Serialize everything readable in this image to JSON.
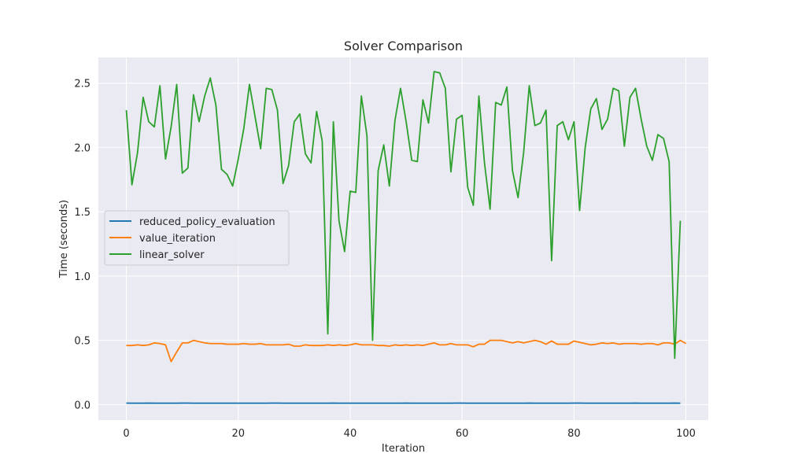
{
  "chart_data": {
    "type": "line",
    "title": "Solver Comparison",
    "xlabel": "Iteration",
    "ylabel": "Time (seconds)",
    "xlim": [
      -5,
      104
    ],
    "ylim": [
      -0.12,
      2.7
    ],
    "xticks": [
      0,
      20,
      40,
      60,
      80,
      100
    ],
    "xtick_labels": [
      "0",
      "20",
      "40",
      "60",
      "80",
      "100"
    ],
    "yticks": [
      0.0,
      0.5,
      1.0,
      1.5,
      2.0,
      2.5
    ],
    "ytick_labels": [
      "0.0",
      "0.5",
      "1.0",
      "1.5",
      "2.0",
      "2.5"
    ],
    "grid": true,
    "legend_position": "center-left",
    "series": [
      {
        "name": "reduced_policy_evaluation",
        "color": "#1f77b4",
        "values": [
          0.012,
          0.011,
          0.011,
          0.011,
          0.012,
          0.011,
          0.011,
          0.011,
          0.011,
          0.011,
          0.012,
          0.012,
          0.011,
          0.011,
          0.011,
          0.011,
          0.011,
          0.011,
          0.011,
          0.011,
          0.011,
          0.011,
          0.011,
          0.011,
          0.011,
          0.011,
          0.012,
          0.012,
          0.011,
          0.011,
          0.011,
          0.011,
          0.011,
          0.011,
          0.011,
          0.011,
          0.011,
          0.012,
          0.011,
          0.011,
          0.011,
          0.011,
          0.011,
          0.011,
          0.011,
          0.011,
          0.011,
          0.011,
          0.011,
          0.011,
          0.012,
          0.011,
          0.011,
          0.011,
          0.011,
          0.011,
          0.011,
          0.011,
          0.011,
          0.012,
          0.012,
          0.011,
          0.011,
          0.011,
          0.011,
          0.011,
          0.011,
          0.011,
          0.011,
          0.011,
          0.011,
          0.011,
          0.012,
          0.011,
          0.011,
          0.011,
          0.011,
          0.011,
          0.011,
          0.011,
          0.012,
          0.012,
          0.011,
          0.011,
          0.011,
          0.011,
          0.011,
          0.011,
          0.011,
          0.011,
          0.011,
          0.012,
          0.011,
          0.011,
          0.011,
          0.011,
          0.011,
          0.011,
          0.012,
          0.011
        ]
      },
      {
        "name": "value_iteration",
        "color": "#ff7f0e",
        "values": [
          0.46,
          0.46,
          0.465,
          0.46,
          0.465,
          0.48,
          0.475,
          0.465,
          0.335,
          0.41,
          0.48,
          0.48,
          0.5,
          0.49,
          0.48,
          0.475,
          0.475,
          0.475,
          0.47,
          0.47,
          0.47,
          0.475,
          0.47,
          0.47,
          0.475,
          0.465,
          0.465,
          0.465,
          0.465,
          0.47,
          0.455,
          0.455,
          0.465,
          0.46,
          0.46,
          0.46,
          0.465,
          0.46,
          0.465,
          0.46,
          0.465,
          0.475,
          0.465,
          0.465,
          0.465,
          0.46,
          0.46,
          0.455,
          0.465,
          0.46,
          0.465,
          0.46,
          0.465,
          0.46,
          0.47,
          0.48,
          0.465,
          0.465,
          0.475,
          0.465,
          0.465,
          0.465,
          0.45,
          0.47,
          0.47,
          0.5,
          0.5,
          0.5,
          0.49,
          0.48,
          0.49,
          0.48,
          0.49,
          0.5,
          0.49,
          0.47,
          0.495,
          0.47,
          0.47,
          0.47,
          0.495,
          0.485,
          0.475,
          0.465,
          0.47,
          0.48,
          0.475,
          0.48,
          0.47,
          0.475,
          0.475,
          0.475,
          0.47,
          0.475,
          0.475,
          0.465,
          0.48,
          0.48,
          0.47,
          0.5,
          0.475
        ]
      },
      {
        "name": "linear_solver",
        "color": "#2ca02c",
        "values": [
          2.29,
          1.71,
          1.96,
          2.39,
          2.2,
          2.16,
          2.48,
          1.91,
          2.16,
          2.49,
          1.8,
          1.84,
          2.41,
          2.2,
          2.4,
          2.54,
          2.33,
          1.83,
          1.79,
          1.7,
          1.91,
          2.15,
          2.49,
          2.24,
          1.99,
          2.46,
          2.45,
          2.29,
          1.72,
          1.86,
          2.2,
          2.26,
          1.95,
          1.88,
          2.28,
          2.05,
          0.55,
          2.2,
          1.43,
          1.19,
          1.66,
          1.65,
          2.4,
          2.09,
          0.5,
          1.82,
          2.02,
          1.7,
          2.21,
          2.46,
          2.2,
          1.9,
          1.89,
          2.37,
          2.19,
          2.59,
          2.58,
          2.46,
          1.81,
          2.22,
          2.25,
          1.69,
          1.55,
          2.4,
          1.88,
          1.52,
          2.35,
          2.33,
          2.47,
          1.82,
          1.61,
          1.96,
          2.48,
          2.17,
          2.19,
          2.29,
          1.12,
          2.17,
          2.2,
          2.06,
          2.2,
          1.51,
          2.0,
          2.3,
          2.38,
          2.14,
          2.22,
          2.46,
          2.44,
          2.01,
          2.39,
          2.46,
          2.22,
          2.01,
          1.9,
          2.1,
          2.07,
          1.89,
          0.36,
          1.43
        ]
      }
    ]
  }
}
